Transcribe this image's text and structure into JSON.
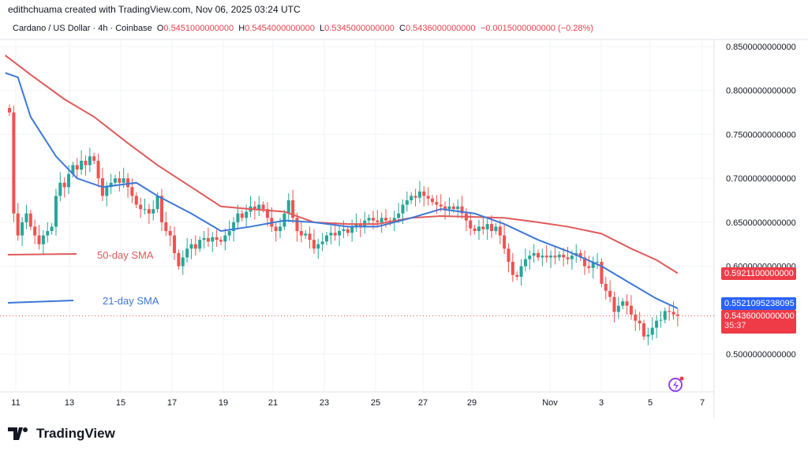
{
  "header": {
    "credit": "edithchuama created with TradingView.com, Nov 06, 2025 03:24 UTC"
  },
  "info": {
    "symbol": "Cardano / US Dollar · 4h · Coinbase",
    "o_label": "O",
    "o": "0.5451000000000",
    "h_label": "H",
    "h": "0.5454000000000",
    "l_label": "L",
    "l": "0.5345000000000",
    "c_label": "C",
    "c": "0.5436000000000",
    "change": "−0.0015000000000 (−0.28%)"
  },
  "tags": {
    "sma50": "0.5921100000000",
    "sma21": "0.5521095238095",
    "last": "0.5436000000000",
    "countdown": "35:37"
  },
  "legend": {
    "sma50": "50-day SMA",
    "sma21": "21-day SMA"
  },
  "logo": "TradingView",
  "colors": {
    "up": "#26a69a",
    "down": "#ef5350",
    "sma50": "#e05a5a",
    "sma21": "#3c78d8"
  },
  "chart_data": {
    "type": "candlestick",
    "timeframe": "4h",
    "ylim": [
      0.48,
      0.87
    ],
    "y_ticks": [
      "0.5000000000000",
      "0.6000000000000",
      "0.6500000000000",
      "0.7000000000000",
      "0.7500000000000",
      "0.8000000000000",
      "0.8500000000000"
    ],
    "y_tick_values": [
      0.5,
      0.6,
      0.65,
      0.7,
      0.75,
      0.8,
      0.85
    ],
    "x_ticks": [
      "11",
      "13",
      "15",
      "17",
      "19",
      "21",
      "23",
      "25",
      "27",
      "29",
      "Nov",
      "3",
      "5",
      "7"
    ],
    "first_open": 0.78,
    "closes": [
      0.775,
      0.66,
      0.635,
      0.65,
      0.66,
      0.645,
      0.635,
      0.625,
      0.635,
      0.64,
      0.645,
      0.68,
      0.695,
      0.69,
      0.705,
      0.715,
      0.71,
      0.72,
      0.715,
      0.725,
      0.72,
      0.7,
      0.68,
      0.69,
      0.695,
      0.7,
      0.695,
      0.7,
      0.69,
      0.68,
      0.67,
      0.665,
      0.665,
      0.66,
      0.665,
      0.68,
      0.65,
      0.64,
      0.635,
      0.615,
      0.6,
      0.61,
      0.62,
      0.625,
      0.62,
      0.63,
      0.632,
      0.628,
      0.633,
      0.63,
      0.628,
      0.635,
      0.64,
      0.65,
      0.66,
      0.655,
      0.662,
      0.668,
      0.665,
      0.67,
      0.665,
      0.655,
      0.645,
      0.64,
      0.645,
      0.66,
      0.675,
      0.655,
      0.64,
      0.635,
      0.637,
      0.63,
      0.62,
      0.625,
      0.628,
      0.635,
      0.638,
      0.635,
      0.64,
      0.642,
      0.638,
      0.645,
      0.648,
      0.645,
      0.652,
      0.655,
      0.652,
      0.65,
      0.655,
      0.652,
      0.65,
      0.655,
      0.66,
      0.67,
      0.675,
      0.68,
      0.678,
      0.685,
      0.68,
      0.677,
      0.673,
      0.67,
      0.668,
      0.665,
      0.668,
      0.665,
      0.668,
      0.66,
      0.652,
      0.643,
      0.64,
      0.645,
      0.642,
      0.648,
      0.64,
      0.645,
      0.635,
      0.62,
      0.605,
      0.59,
      0.588,
      0.6,
      0.608,
      0.612,
      0.615,
      0.61,
      0.612,
      0.61,
      0.612,
      0.61,
      0.613,
      0.61,
      0.608,
      0.612,
      0.615,
      0.61,
      0.6,
      0.598,
      0.605,
      0.605,
      0.58,
      0.572,
      0.565,
      0.548,
      0.555,
      0.56,
      0.555,
      0.545,
      0.538,
      0.535,
      0.52,
      0.522,
      0.53,
      0.538,
      0.539,
      0.549,
      0.548,
      0.5451,
      0.5436
    ],
    "sma21": [
      [
        -1,
        0.82
      ],
      [
        2,
        0.815
      ],
      [
        5,
        0.77
      ],
      [
        11,
        0.725
      ],
      [
        16,
        0.7
      ],
      [
        22,
        0.69
      ],
      [
        30,
        0.695
      ],
      [
        35,
        0.68
      ],
      [
        43,
        0.66
      ],
      [
        50,
        0.64
      ],
      [
        57,
        0.645
      ],
      [
        65,
        0.652
      ],
      [
        72,
        0.65
      ],
      [
        80,
        0.645
      ],
      [
        87,
        0.645
      ],
      [
        95,
        0.655
      ],
      [
        102,
        0.665
      ],
      [
        110,
        0.66
      ],
      [
        117,
        0.648
      ],
      [
        125,
        0.63
      ],
      [
        132,
        0.617
      ],
      [
        140,
        0.6
      ],
      [
        147,
        0.58
      ],
      [
        153,
        0.563
      ],
      [
        158,
        0.552
      ]
    ],
    "sma50": [
      [
        -1,
        0.84
      ],
      [
        5,
        0.818
      ],
      [
        13,
        0.79
      ],
      [
        20,
        0.77
      ],
      [
        28,
        0.74
      ],
      [
        35,
        0.715
      ],
      [
        43,
        0.69
      ],
      [
        50,
        0.668
      ],
      [
        57,
        0.665
      ],
      [
        65,
        0.662
      ],
      [
        72,
        0.65
      ],
      [
        80,
        0.648
      ],
      [
        87,
        0.648
      ],
      [
        95,
        0.655
      ],
      [
        102,
        0.657
      ],
      [
        110,
        0.656
      ],
      [
        117,
        0.655
      ],
      [
        125,
        0.65
      ],
      [
        132,
        0.645
      ],
      [
        140,
        0.637
      ],
      [
        147,
        0.62
      ],
      [
        153,
        0.607
      ],
      [
        158,
        0.592
      ]
    ]
  }
}
